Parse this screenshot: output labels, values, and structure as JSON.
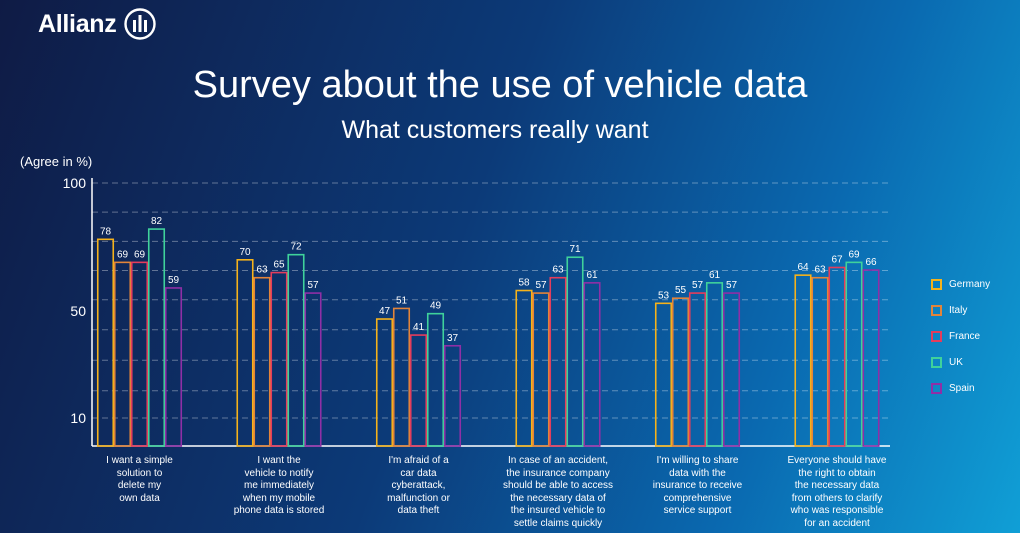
{
  "brand": {
    "name": "Allianz",
    "logo_icon": "allianz-eagle-icon"
  },
  "header": {
    "title": "Survey about the use of vehicle data",
    "subtitle": "What customers really want"
  },
  "chart_data": {
    "type": "bar",
    "title": "Survey about the use of vehicle data",
    "subtitle": "What customers really want",
    "ylabel": "(Agree in %)",
    "ylim": [
      0,
      100
    ],
    "yticks": [
      "100",
      "50",
      "10"
    ],
    "grid": "dashed horizontal lines",
    "legend_position": "right",
    "categories": [
      "I want a simple solution to delete my own data",
      "I want the vehicle to notify me immediately when my mobile phone data is stored",
      "I'm afraid of a car data cyberattack, malfunction or data theft",
      "In case of an accident, the insurance company should be able to access the necessary data of the insured vehicle to settle claims quickly",
      "I'm willing to share data with the insurance to receive comprehensive service support",
      "Everyone should have the right to obtain the necessary data from others to clarify who was responsible for an accident"
    ],
    "category_lines": [
      [
        "I want a simple",
        "solution to",
        "delete my",
        "own data"
      ],
      [
        "I want the",
        "vehicle to notify",
        "me immediately",
        "when my mobile",
        "phone data is stored"
      ],
      [
        "I'm afraid of a",
        "car data",
        "cyberattack,",
        "malfunction or",
        "data theft"
      ],
      [
        "In case of an accident,",
        "the insurance company",
        "should be able to access",
        "the necessary data of",
        "the insured vehicle to",
        "settle claims quickly"
      ],
      [
        "I'm willing to share",
        "data with the",
        "insurance to receive",
        "comprehensive",
        "service support"
      ],
      [
        "Everyone should have",
        "the right to obtain",
        "the necessary data",
        "from others to clarify",
        "who was responsible",
        "for an accident"
      ]
    ],
    "series": [
      {
        "name": "Germany",
        "color": "#f5b21b",
        "values": [
          78,
          70,
          47,
          58,
          53,
          64
        ]
      },
      {
        "name": "Italy",
        "color": "#e2843a",
        "values": [
          69,
          63,
          51,
          57,
          55,
          63
        ]
      },
      {
        "name": "France",
        "color": "#e43d5c",
        "values": [
          69,
          65,
          41,
          63,
          57,
          67
        ]
      },
      {
        "name": "UK",
        "color": "#3fd29b",
        "values": [
          82,
          72,
          49,
          71,
          61,
          69
        ]
      },
      {
        "name": "Spain",
        "color": "#8f2fa6",
        "values": [
          59,
          57,
          37,
          61,
          57,
          66
        ]
      }
    ]
  }
}
